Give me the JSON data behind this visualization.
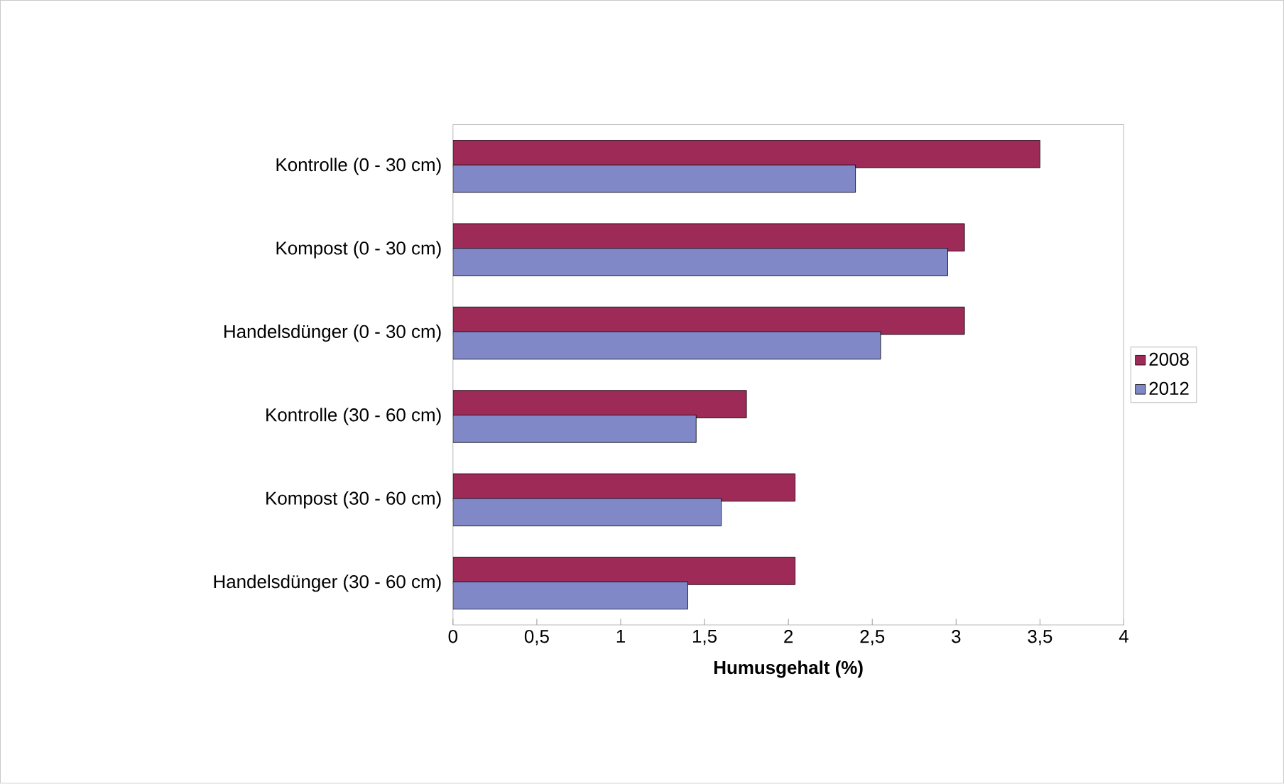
{
  "chart_data": {
    "type": "bar",
    "orientation": "horizontal",
    "xlabel": "**Humusgehalt (%)**",
    "categories": [
      "Kontrolle (0 - 30 cm)",
      "Kompost (0 - 30 cm)",
      "Handelsdünger (0 - 30 cm)",
      "Kontrolle (30 - 60 cm)",
      "Kompost (30 - 60 cm)",
      "Handelsdünger (30 - 60 cm)"
    ],
    "series": [
      {
        "name": "2008",
        "color": "#9e2a58",
        "values": [
          3.5,
          3.05,
          3.05,
          1.75,
          2.04,
          2.04
        ]
      },
      {
        "name": "2012",
        "color": "#8088c8",
        "values": [
          2.4,
          2.95,
          2.55,
          1.45,
          1.6,
          1.4
        ]
      }
    ],
    "xlim": [
      0,
      4
    ],
    "xticks": [
      0,
      {
        "value": 0.5,
        "label": "0,5"
      },
      1,
      {
        "value": 1.5,
        "label": "1,5"
      },
      2,
      {
        "value": 2.5,
        "label": "2,5"
      },
      3,
      {
        "value": 3.5,
        "label": "3,5"
      },
      4
    ],
    "legend": "right"
  }
}
